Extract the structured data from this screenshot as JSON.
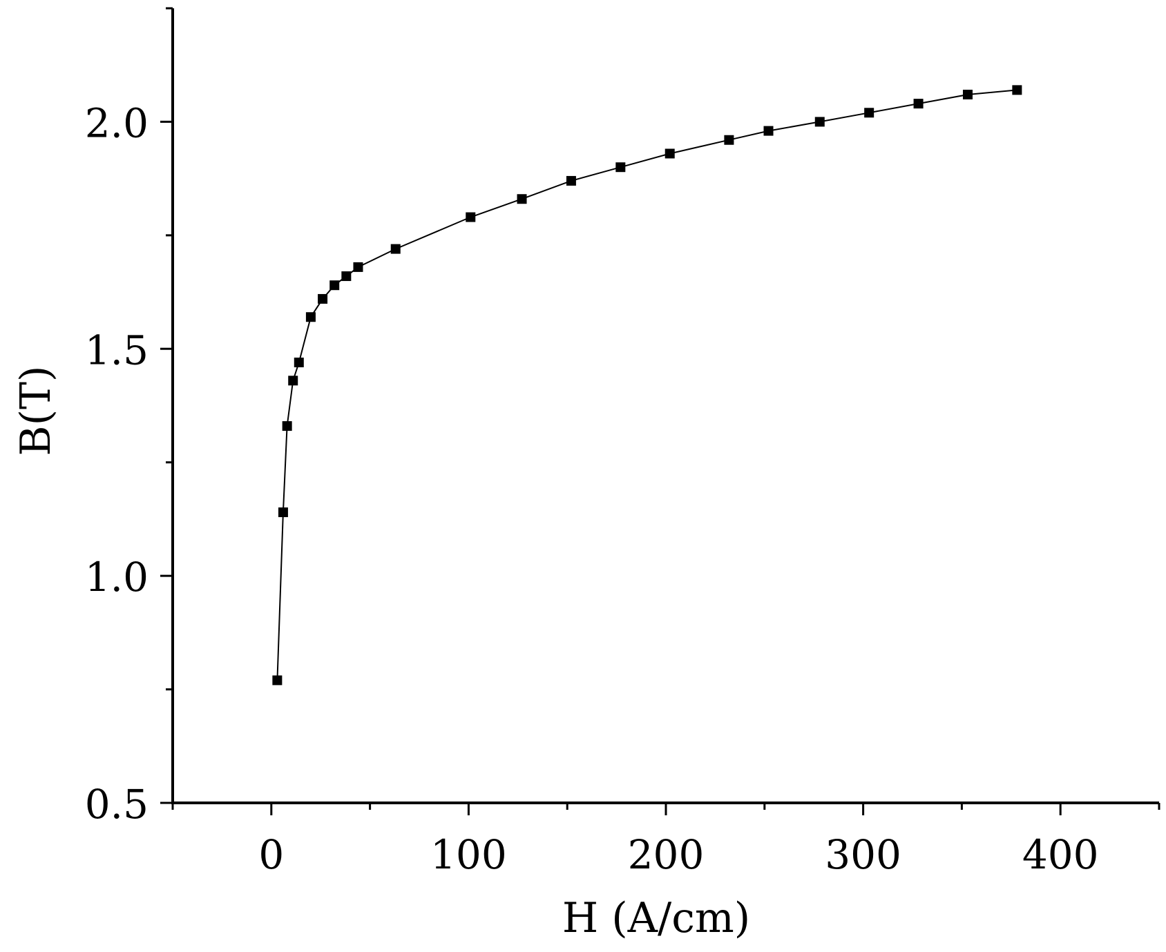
{
  "chart_data": {
    "type": "line",
    "title": "",
    "xlabel": "H (A/cm)",
    "ylabel": "B(T)",
    "xlim": [
      -50,
      450
    ],
    "ylim": [
      0.5,
      2.25
    ],
    "xticks": [
      0,
      100,
      200,
      300,
      400
    ],
    "xtick_labels": [
      "0",
      "100",
      "200",
      "300",
      "400"
    ],
    "yticks": [
      0.5,
      1.0,
      1.5,
      2.0
    ],
    "ytick_labels": [
      "0.5",
      "1.0",
      "1.5",
      "2.0"
    ],
    "grid": false,
    "legend": "none",
    "marker": "square",
    "series": [
      {
        "x": [
          3,
          6,
          8,
          11,
          14,
          20,
          26,
          32,
          38,
          44,
          63,
          101,
          127,
          152,
          177,
          202,
          232,
          252,
          278,
          303,
          328,
          353,
          378
        ],
        "y": [
          0.77,
          1.14,
          1.33,
          1.43,
          1.47,
          1.57,
          1.61,
          1.64,
          1.66,
          1.68,
          1.72,
          1.79,
          1.83,
          1.87,
          1.9,
          1.93,
          1.96,
          1.98,
          2.0,
          2.02,
          2.04,
          2.06,
          2.07
        ]
      }
    ],
    "colors": {
      "line": "#000000",
      "marker": "#000000",
      "axis": "#000000"
    }
  }
}
